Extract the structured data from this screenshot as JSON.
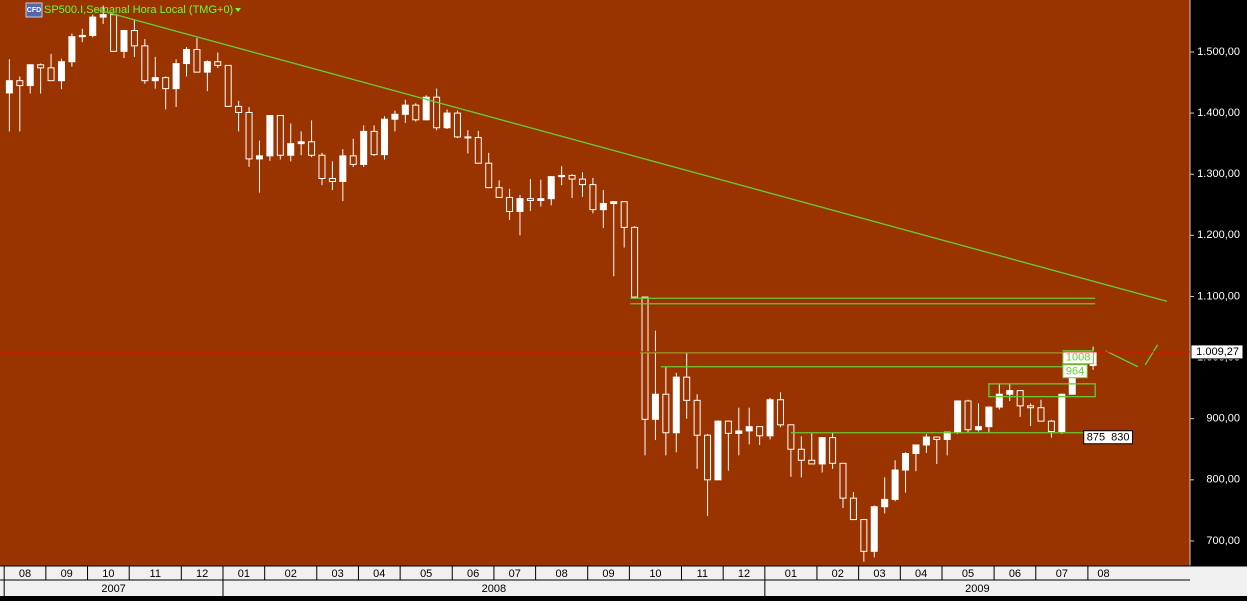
{
  "header": {
    "icon": "CFD",
    "title": "SP500.I,Semanal Hora Local (TMG+0)"
  },
  "chart_data": {
    "type": "candlestick",
    "colors": {
      "background": "#993300",
      "up": "#ffffff",
      "down": "#993300",
      "wick": "#ffffff",
      "annotation": "#66cc33",
      "price_line": "#ff0000"
    },
    "open": [
      1433,
      1453,
      1445,
      1479,
      1474,
      1453,
      1484,
      1525,
      1527,
      1557,
      1561,
      1501,
      1535,
      1510,
      1453,
      1458,
      1440,
      1481,
      1504,
      1467,
      1484,
      1478,
      1411,
      1401,
      1325,
      1330,
      1396,
      1331,
      1350,
      1353,
      1331,
      1293,
      1288,
      1330,
      1316,
      1370,
      1332,
      1390,
      1398,
      1413,
      1389,
      1426,
      1376,
      1400,
      1361,
      1360,
      1318,
      1278,
      1262,
      1239,
      1260,
      1257,
      1260,
      1296,
      1298,
      1292,
      1283,
      1242,
      1252,
      1255,
      1213,
      1099,
      899,
      940,
      877,
      968,
      930,
      873,
      800,
      896,
      876,
      880,
      887,
      872,
      931,
      890,
      850,
      832,
      826,
      869,
      827,
      770,
      735,
      683,
      756,
      768,
      816,
      843,
      857,
      870,
      866,
      878,
      929,
      882,
      887,
      919,
      940,
      946,
      921,
      918,
      896,
      879,
      940,
      979,
      987
    ],
    "high": [
      1488,
      1460,
      1480,
      1481,
      1497,
      1489,
      1530,
      1538,
      1561,
      1576,
      1563,
      1536,
      1552,
      1521,
      1492,
      1460,
      1488,
      1508,
      1523,
      1486,
      1499,
      1478,
      1420,
      1410,
      1355,
      1396,
      1396,
      1383,
      1370,
      1388,
      1335,
      1321,
      1341,
      1358,
      1380,
      1380,
      1395,
      1404,
      1422,
      1416,
      1429,
      1440,
      1406,
      1404,
      1372,
      1371,
      1335,
      1290,
      1276,
      1266,
      1292,
      1291,
      1297,
      1313,
      1300,
      1303,
      1294,
      1274,
      1256,
      1255,
      1215,
      1099,
      1044,
      985,
      975,
      1007,
      940,
      875,
      897,
      897,
      918,
      918,
      887,
      934,
      943,
      890,
      871,
      877,
      870,
      876,
      827,
      780,
      736,
      758,
      804,
      832,
      845,
      857,
      875,
      871,
      878,
      930,
      931,
      925,
      920,
      956,
      956,
      946,
      925,
      931,
      898,
      941,
      979,
      1001,
      1018
    ],
    "low": [
      1370,
      1370,
      1432,
      1432,
      1453,
      1439,
      1476,
      1516,
      1524,
      1546,
      1500,
      1490,
      1492,
      1448,
      1440,
      1406,
      1410,
      1460,
      1467,
      1436,
      1474,
      1411,
      1370,
      1312,
      1270,
      1322,
      1324,
      1321,
      1331,
      1328,
      1282,
      1274,
      1256,
      1312,
      1312,
      1330,
      1324,
      1370,
      1384,
      1386,
      1388,
      1372,
      1374,
      1359,
      1334,
      1317,
      1278,
      1262,
      1225,
      1200,
      1240,
      1247,
      1249,
      1282,
      1261,
      1263,
      1236,
      1212,
      1133,
      1180,
      1099,
      840,
      865,
      840,
      845,
      900,
      818,
      741,
      800,
      815,
      840,
      858,
      857,
      866,
      886,
      805,
      804,
      826,
      812,
      818,
      754,
      734,
      666,
      673,
      745,
      765,
      779,
      814,
      844,
      826,
      840,
      875,
      878,
      879,
      877,
      915,
      929,
      903,
      888,
      896,
      869,
      875,
      940,
      968,
      980
    ],
    "close": [
      1453,
      1445,
      1479,
      1474,
      1453,
      1484,
      1525,
      1527,
      1557,
      1561,
      1501,
      1535,
      1510,
      1453,
      1458,
      1440,
      1481,
      1504,
      1467,
      1484,
      1478,
      1411,
      1401,
      1325,
      1330,
      1396,
      1331,
      1350,
      1353,
      1331,
      1293,
      1288,
      1330,
      1316,
      1370,
      1332,
      1390,
      1398,
      1413,
      1389,
      1426,
      1376,
      1400,
      1361,
      1360,
      1318,
      1278,
      1262,
      1239,
      1260,
      1257,
      1260,
      1296,
      1298,
      1292,
      1283,
      1242,
      1252,
      1255,
      1213,
      1099,
      899,
      940,
      877,
      968,
      930,
      873,
      800,
      896,
      876,
      880,
      887,
      872,
      931,
      890,
      850,
      832,
      826,
      869,
      827,
      770,
      735,
      683,
      756,
      768,
      816,
      843,
      857,
      870,
      866,
      878,
      929,
      882,
      887,
      919,
      940,
      946,
      921,
      918,
      896,
      879,
      940,
      979,
      987,
      1009
    ],
    "xlim": [
      -0.9,
      113.3
    ],
    "ylim": [
      659,
      1585
    ],
    "yticks": [
      {
        "value": 700,
        "label": "700,00"
      },
      {
        "value": 800,
        "label": "800,00"
      },
      {
        "value": 900,
        "label": "900,00"
      },
      {
        "value": 1000,
        "label": "1.000,00"
      },
      {
        "value": 1100,
        "label": "1.100,00"
      },
      {
        "value": 1200,
        "label": "1.200,00"
      },
      {
        "value": 1300,
        "label": "1.300,00"
      },
      {
        "value": 1400,
        "label": "1.400,00"
      },
      {
        "value": 1500,
        "label": "1.500,00"
      }
    ],
    "xticks": [
      {
        "value": 0,
        "label": "08"
      },
      {
        "value": 4,
        "label": "09"
      },
      {
        "value": 8,
        "label": "10"
      },
      {
        "value": 12,
        "label": "11"
      },
      {
        "value": 17,
        "label": "12"
      },
      {
        "value": 21,
        "label": "01"
      },
      {
        "value": 25,
        "label": "02"
      },
      {
        "value": 30,
        "label": "03"
      },
      {
        "value": 34,
        "label": "04"
      },
      {
        "value": 38,
        "label": "05"
      },
      {
        "value": 43,
        "label": "06"
      },
      {
        "value": 47,
        "label": "07"
      },
      {
        "value": 51,
        "label": "08"
      },
      {
        "value": 56,
        "label": "09"
      },
      {
        "value": 60,
        "label": "10"
      },
      {
        "value": 65,
        "label": "11"
      },
      {
        "value": 69,
        "label": "12"
      },
      {
        "value": 73,
        "label": "01"
      },
      {
        "value": 78,
        "label": "02"
      },
      {
        "value": 82,
        "label": "03"
      },
      {
        "value": 86,
        "label": "04"
      },
      {
        "value": 90,
        "label": "05"
      },
      {
        "value": 95,
        "label": "06"
      },
      {
        "value": 99,
        "label": "07"
      },
      {
        "value": 104,
        "label": "08"
      }
    ],
    "years": [
      {
        "value": 0,
        "label": "2007"
      },
      {
        "value": 21,
        "label": "2008"
      },
      {
        "value": 73,
        "label": "2009"
      }
    ],
    "trendline": {
      "x": [
        8.25,
        111.1
      ],
      "y": [
        1570,
        1092
      ]
    },
    "levels": [
      {
        "x": [
          59.6,
          104.2
        ],
        "y": 1097
      },
      {
        "x": [
          59.6,
          104.2
        ],
        "y": 1088
      },
      {
        "x": [
          60.5,
          101.1
        ],
        "y": 1008,
        "label": "1008"
      },
      {
        "x": [
          62.5,
          101.1
        ],
        "y": 985,
        "label": "964"
      },
      {
        "x": [
          75,
          103.1
        ],
        "y": 877,
        "label": "875  830"
      }
    ],
    "box": {
      "x": [
        94,
        104.2
      ],
      "y": [
        936,
        957
      ]
    },
    "projection": {
      "x": [
        105.2,
        108.3,
        null,
        109.0,
        110.2
      ],
      "y": [
        1011,
        985,
        null,
        988,
        1021
      ]
    },
    "price_line": {
      "value": 1009.27,
      "label": "1.009,27"
    }
  }
}
